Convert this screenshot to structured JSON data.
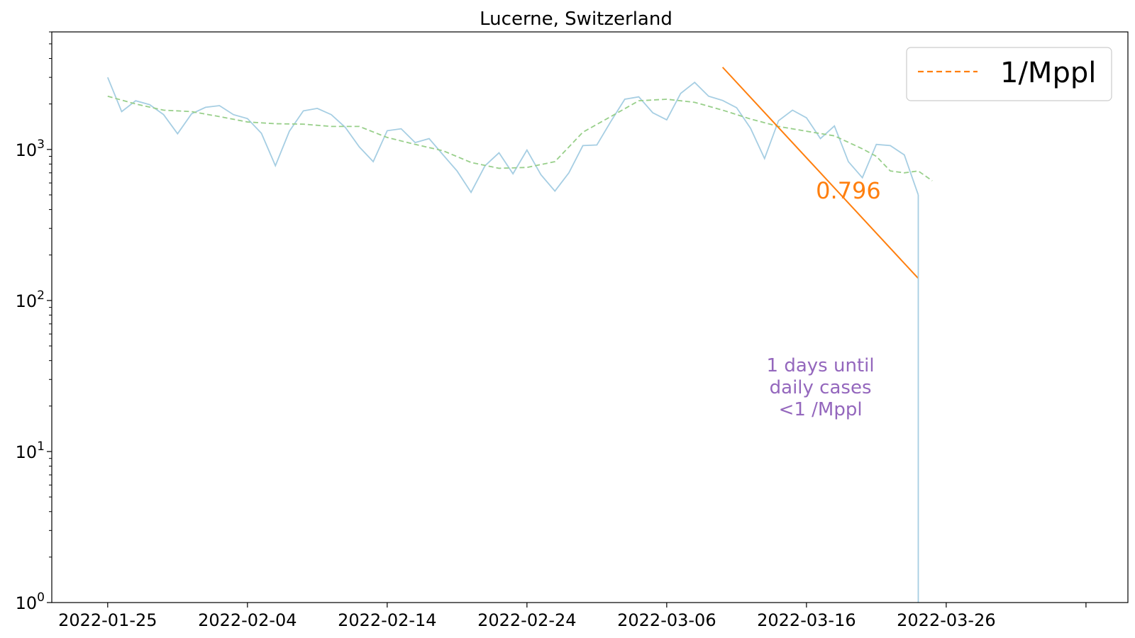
{
  "chart_data": {
    "type": "line",
    "title": "Lucerne, Switzerland",
    "xlabel": "",
    "ylabel": "",
    "yscale": "log",
    "ylim": [
      1,
      6000
    ],
    "xlim": [
      "2022-01-21",
      "2022-04-08"
    ],
    "grid": false,
    "legend": {
      "placement": "top-right",
      "entries": [
        {
          "label": "1/Mppl",
          "style": "dashed",
          "color": "#ff7f0e"
        }
      ]
    },
    "x_ticks": [
      "2022-01-25",
      "2022-02-04",
      "2022-02-14",
      "2022-02-24",
      "2022-03-06",
      "2022-03-16",
      "2022-03-26"
    ],
    "y_ticks": [
      {
        "value": 1,
        "base": "10",
        "exp": "0"
      },
      {
        "value": 10,
        "base": "10",
        "exp": "1"
      },
      {
        "value": 100,
        "base": "10",
        "exp": "2"
      },
      {
        "value": 1000,
        "base": "10",
        "exp": "3"
      }
    ],
    "series": [
      {
        "style": "solid",
        "color": "#a6cee3",
        "x": [
          "2022-01-25",
          "2022-01-26",
          "2022-01-27",
          "2022-01-28",
          "2022-01-29",
          "2022-01-30",
          "2022-01-31",
          "2022-02-01",
          "2022-02-02",
          "2022-02-03",
          "2022-02-04",
          "2022-02-05",
          "2022-02-06",
          "2022-02-07",
          "2022-02-08",
          "2022-02-09",
          "2022-02-10",
          "2022-02-11",
          "2022-02-12",
          "2022-02-13",
          "2022-02-14",
          "2022-02-15",
          "2022-02-16",
          "2022-02-17",
          "2022-02-18",
          "2022-02-19",
          "2022-02-20",
          "2022-02-21",
          "2022-02-22",
          "2022-02-23",
          "2022-02-24",
          "2022-02-25",
          "2022-02-26",
          "2022-02-27",
          "2022-02-28",
          "2022-03-01",
          "2022-03-02",
          "2022-03-03",
          "2022-03-04",
          "2022-03-05",
          "2022-03-06",
          "2022-03-07",
          "2022-03-08",
          "2022-03-09",
          "2022-03-10",
          "2022-03-11",
          "2022-03-12",
          "2022-03-13",
          "2022-03-14",
          "2022-03-15",
          "2022-03-16",
          "2022-03-17",
          "2022-03-18",
          "2022-03-19",
          "2022-03-20",
          "2022-03-21",
          "2022-03-22",
          "2022-03-23",
          "2022-03-24"
        ],
        "y": [
          3000,
          1780,
          2100,
          1980,
          1700,
          1270,
          1720,
          1900,
          1950,
          1700,
          1600,
          1280,
          780,
          1320,
          1800,
          1870,
          1700,
          1400,
          1040,
          830,
          1330,
          1370,
          1110,
          1180,
          920,
          720,
          520,
          780,
          950,
          690,
          990,
          680,
          530,
          700,
          1060,
          1070,
          1530,
          2150,
          2230,
          1750,
          1570,
          2350,
          2780,
          2250,
          2110,
          1890,
          1380,
          870,
          1550,
          1820,
          1620,
          1180,
          1430,
          830,
          650,
          1080,
          1060,
          920,
          500
        ]
      },
      {
        "style": "dashed",
        "color": "#98cf8a",
        "x": [
          "2022-01-25",
          "2022-01-27",
          "2022-01-29",
          "2022-01-31",
          "2022-02-02",
          "2022-02-04",
          "2022-02-06",
          "2022-02-08",
          "2022-02-10",
          "2022-02-12",
          "2022-02-14",
          "2022-02-16",
          "2022-02-18",
          "2022-02-20",
          "2022-02-22",
          "2022-02-24",
          "2022-02-26",
          "2022-02-28",
          "2022-03-02",
          "2022-03-04",
          "2022-03-06",
          "2022-03-08",
          "2022-03-10",
          "2022-03-12",
          "2022-03-14",
          "2022-03-16",
          "2022-03-18",
          "2022-03-20",
          "2022-03-21",
          "2022-03-22",
          "2022-03-23",
          "2022-03-24",
          "2022-03-25"
        ],
        "y": [
          2250,
          2000,
          1820,
          1780,
          1650,
          1520,
          1480,
          1470,
          1420,
          1420,
          1200,
          1080,
          980,
          820,
          750,
          760,
          830,
          1300,
          1650,
          2100,
          2150,
          2050,
          1820,
          1590,
          1420,
          1320,
          1230,
          1010,
          900,
          720,
          700,
          720,
          620
        ]
      },
      {
        "name": "1/Mppl",
        "style": "solid",
        "color": "#ff7f0e",
        "x": [
          "2022-03-10",
          "2022-03-24"
        ],
        "y": [
          3500,
          140
        ]
      }
    ],
    "annotations": [
      {
        "id": "rate",
        "text": "0.796",
        "x": "2022-03-19",
        "y": 540,
        "color": "#ff7f0e"
      },
      {
        "id": "days",
        "lines": [
          "1 days until",
          "daily cases",
          "<1 /Mppl"
        ],
        "x": "2022-03-17",
        "y": 25,
        "color": "#9467bd"
      }
    ]
  }
}
